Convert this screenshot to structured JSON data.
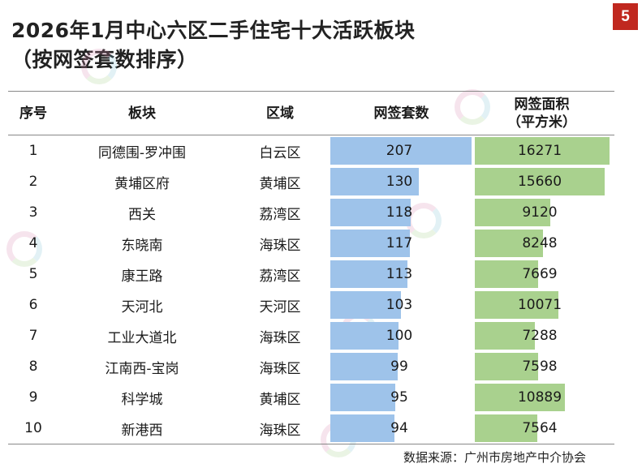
{
  "page_number": "5",
  "title": {
    "line1": "2026年1月中心六区二手住宅十大活跃板块",
    "line2": "（按网签套数排序）"
  },
  "headers": {
    "rank": "序号",
    "block": "板块",
    "district": "区域",
    "count": "网签套数",
    "area_line1": "网签面积",
    "area_line2": "（平方米）"
  },
  "source": "数据来源：广州市房地产中介协会",
  "colors": {
    "count_bar": "#9ec3ea",
    "area_bar": "#a9d18e",
    "badge": "#c0281f"
  },
  "chart_data": {
    "type": "table",
    "columns": [
      "序号",
      "板块",
      "区域",
      "网签套数",
      "网签面积（平方米）"
    ],
    "rows": [
      {
        "rank": "1",
        "block": "同德围-罗冲围",
        "district": "白云区",
        "count": 207,
        "area": 16271
      },
      {
        "rank": "2",
        "block": "黄埔区府",
        "district": "黄埔区",
        "count": 130,
        "area": 15660
      },
      {
        "rank": "3",
        "block": "西关",
        "district": "荔湾区",
        "count": 118,
        "area": 9120
      },
      {
        "rank": "4",
        "block": "东晓南",
        "district": "海珠区",
        "count": 117,
        "area": 8248
      },
      {
        "rank": "5",
        "block": "康王路",
        "district": "荔湾区",
        "count": 113,
        "area": 7669
      },
      {
        "rank": "6",
        "block": "天河北",
        "district": "天河区",
        "count": 103,
        "area": 10071
      },
      {
        "rank": "7",
        "block": "工业大道北",
        "district": "海珠区",
        "count": 100,
        "area": 7288
      },
      {
        "rank": "8",
        "block": "江南西-宝岗",
        "district": "海珠区",
        "count": 99,
        "area": 7598
      },
      {
        "rank": "9",
        "block": "科学城",
        "district": "黄埔区",
        "count": 95,
        "area": 10889
      },
      {
        "rank": "10",
        "block": "新港西",
        "district": "海珠区",
        "count": 94,
        "area": 7564
      }
    ],
    "count_max": 207,
    "area_max": 16271
  }
}
